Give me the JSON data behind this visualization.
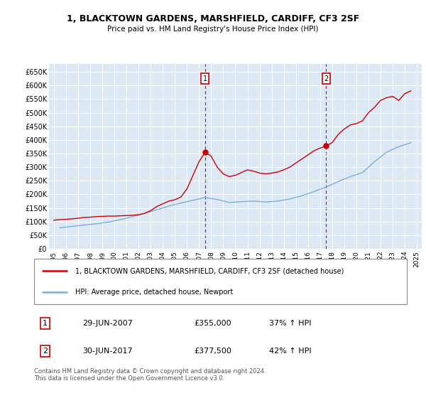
{
  "title": "1, BLACKTOWN GARDENS, MARSHFIELD, CARDIFF, CF3 2SF",
  "subtitle": "Price paid vs. HM Land Registry's House Price Index (HPI)",
  "legend_line1": "1, BLACKTOWN GARDENS, MARSHFIELD, CARDIFF, CF3 2SF (detached house)",
  "legend_line2": "HPI: Average price, detached house, Newport",
  "annotation1_label": "1",
  "annotation1_date": "29-JUN-2007",
  "annotation1_price": "£355,000",
  "annotation1_hpi": "37% ↑ HPI",
  "annotation2_label": "2",
  "annotation2_date": "30-JUN-2017",
  "annotation2_price": "£377,500",
  "annotation2_hpi": "42% ↑ HPI",
  "footer": "Contains HM Land Registry data © Crown copyright and database right 2024.\nThis data is licensed under the Open Government Licence v3.0.",
  "house_color": "#cc0000",
  "hpi_color": "#7bafd4",
  "background_color": "#dde8f5",
  "ylim": [
    0,
    680000
  ],
  "yticks": [
    0,
    50000,
    100000,
    150000,
    200000,
    250000,
    300000,
    350000,
    400000,
    450000,
    500000,
    550000,
    600000,
    650000
  ],
  "xtick_years": [
    1995,
    1996,
    1997,
    1998,
    1999,
    2000,
    2001,
    2002,
    2003,
    2004,
    2005,
    2006,
    2007,
    2008,
    2009,
    2010,
    2011,
    2012,
    2013,
    2014,
    2015,
    2016,
    2017,
    2018,
    2019,
    2020,
    2021,
    2022,
    2023,
    2024,
    2025
  ],
  "vline1_x": 2007.5,
  "vline2_x": 2017.5,
  "sale1_x": 2007.5,
  "sale1_y": 355000,
  "sale2_x": 2017.5,
  "sale2_y": 377500,
  "hpi_x": [
    1995.5,
    1996.5,
    1997.5,
    1998.5,
    1999.5,
    2000.5,
    2001.5,
    2002.5,
    2003.5,
    2004.5,
    2005.5,
    2006.5,
    2007.5,
    2008.5,
    2009.5,
    2010.5,
    2011.5,
    2012.5,
    2013.5,
    2014.5,
    2015.5,
    2016.5,
    2017.5,
    2018.5,
    2019.5,
    2020.5,
    2021.5,
    2022.5,
    2023.5,
    2024.5
  ],
  "hpi_y": [
    77000,
    82000,
    87000,
    92000,
    98000,
    107000,
    118000,
    130000,
    143000,
    157000,
    168000,
    178000,
    188000,
    181000,
    170000,
    173000,
    175000,
    172000,
    175000,
    183000,
    195000,
    210000,
    227000,
    247000,
    265000,
    280000,
    320000,
    355000,
    375000,
    390000
  ],
  "house_x": [
    1995.0,
    1995.5,
    1996.0,
    1996.5,
    1997.0,
    1997.5,
    1998.0,
    1998.5,
    1999.0,
    1999.5,
    2000.0,
    2000.5,
    2001.0,
    2001.5,
    2002.0,
    2002.5,
    2003.0,
    2003.5,
    2004.0,
    2004.5,
    2005.0,
    2005.5,
    2006.0,
    2006.5,
    2007.0,
    2007.5,
    2008.0,
    2008.5,
    2009.0,
    2009.5,
    2010.0,
    2010.5,
    2011.0,
    2011.5,
    2012.0,
    2012.5,
    2013.0,
    2013.5,
    2014.0,
    2014.5,
    2015.0,
    2015.5,
    2016.0,
    2016.5,
    2017.0,
    2017.5,
    2018.0,
    2018.5,
    2019.0,
    2019.5,
    2020.0,
    2020.5,
    2021.0,
    2021.5,
    2022.0,
    2022.5,
    2023.0,
    2023.5,
    2024.0,
    2024.5
  ],
  "house_y": [
    105000,
    107000,
    108000,
    110000,
    112000,
    115000,
    116000,
    118000,
    119000,
    120000,
    120000,
    121000,
    122000,
    123000,
    125000,
    130000,
    140000,
    155000,
    165000,
    175000,
    180000,
    190000,
    220000,
    270000,
    320000,
    355000,
    340000,
    300000,
    275000,
    265000,
    270000,
    280000,
    290000,
    285000,
    278000,
    275000,
    278000,
    282000,
    290000,
    300000,
    315000,
    330000,
    345000,
    360000,
    370000,
    377500,
    390000,
    420000,
    440000,
    455000,
    460000,
    470000,
    500000,
    520000,
    545000,
    555000,
    560000,
    545000,
    570000,
    580000
  ]
}
